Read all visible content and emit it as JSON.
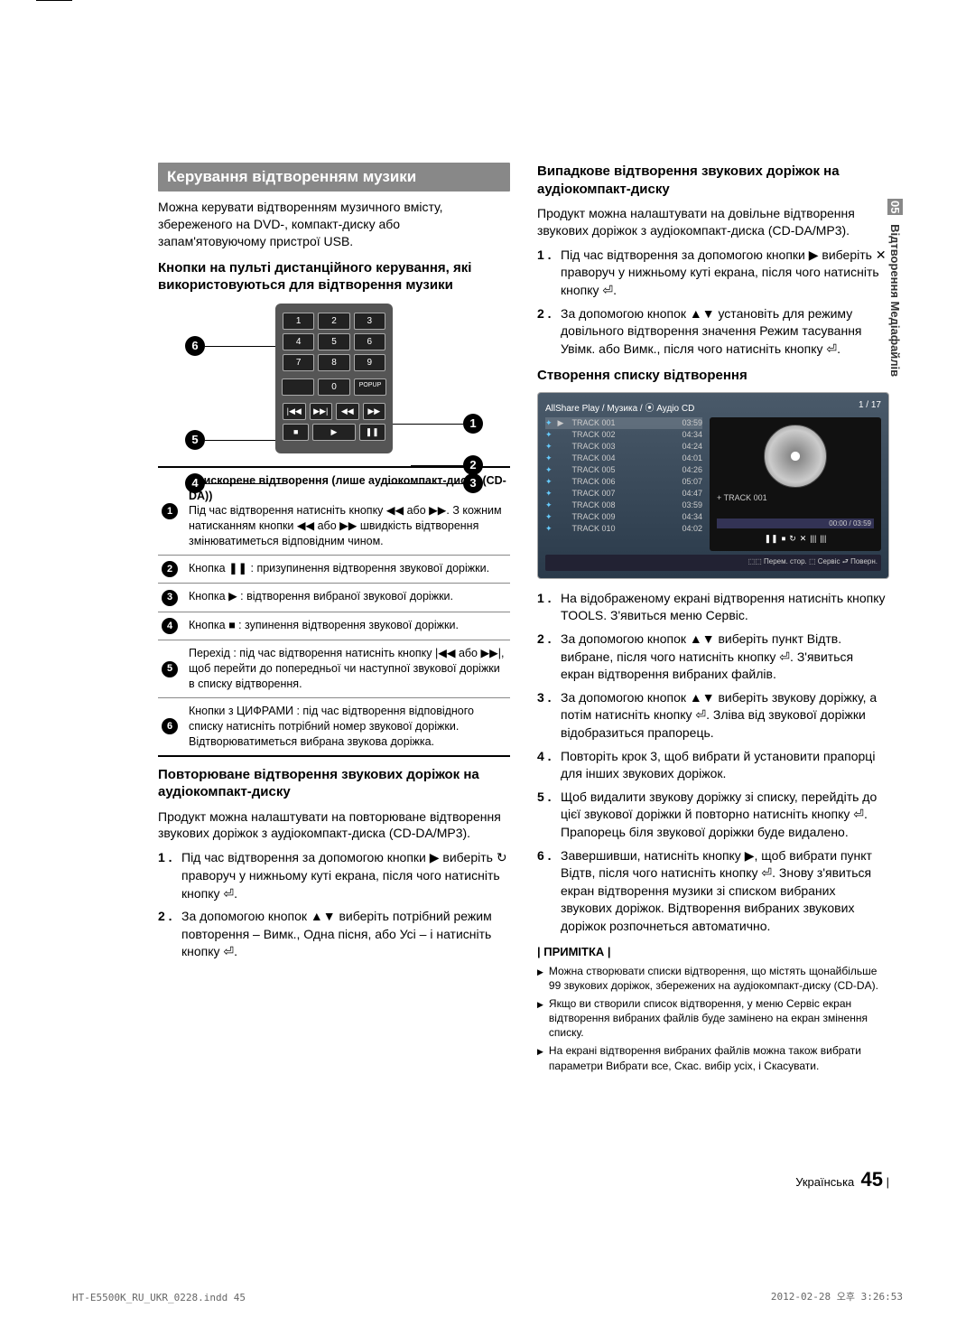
{
  "side": {
    "num": "05",
    "label": "Відтворення Медіафайлів"
  },
  "left": {
    "header": "Керування відтворенням музики",
    "intro": "Можна керувати відтворенням музичного вмісту, збереженого на DVD-, компакт-диску або запам'ятовуючому пристрої USB.",
    "sub1": "Кнопки на пульті дистанційного керування, які використовуються для відтворення музики",
    "remote": {
      "keys": [
        "1",
        "2",
        "3",
        "4",
        "5",
        "6",
        "7",
        "8",
        "9",
        "0"
      ],
      "popup": "POPUP",
      "ctrl_row1": [
        "|◀◀",
        "▶▶|",
        "◀◀",
        "▶▶"
      ],
      "ctrl_row2": [
        "■",
        "▶",
        "❚❚"
      ]
    },
    "table": {
      "r1_title": "Прискорене відтворення (лише аудіокомпакт-диски (CD-DA))",
      "r1_body": "Під час відтворення натисніть кнопку ◀◀ або ▶▶. З кожним натисканням кнопки ◀◀ або ▶▶ швидкість відтворення змінюватиметься відповідним чином.",
      "r2": "Кнопка ❚❚ : призупинення відтворення звукової доріжки.",
      "r3": "Кнопка ▶ : відтворення вибраної звукової доріжки.",
      "r4": "Кнопка ■ : зупинення відтворення звукової доріжки.",
      "r5": "Перехід : під час відтворення натисніть кнопку |◀◀ або ▶▶|, щоб перейти до попередньої чи наступної звукової доріжки в списку відтворення.",
      "r6": "Кнопки з ЦИФРАМИ : під час відтворення відповідного списку натисніть потрібний номер звукової доріжки. Відтворюватиметься вибрана звукова доріжка."
    },
    "sub2": "Повторюване відтворення звукових доріжок на аудіокомпакт-диску",
    "body2": "Продукт можна налаштувати на повторюване відтворення звукових доріжок з аудіокомпакт-диска (CD-DA/MP3).",
    "steps_repeat": [
      "Під час відтворення за допомогою кнопки ▶ виберіть ↻ праворуч у нижньому куті екрана, після чого натисніть кнопку ⏎.",
      "За допомогою кнопок ▲▼ виберіть потрібний режим повторення – Вимк., Одна пісня, або Усі – і натисніть кнопку ⏎."
    ]
  },
  "right": {
    "sub1": "Випадкове відтворення звукових доріжок на аудіокомпакт-диску",
    "body1": "Продукт можна налаштувати на довільне відтворення звукових доріжок з аудіокомпакт-диска (CD-DA/MP3).",
    "steps_random": [
      "Під час відтворення за допомогою кнопки ▶ виберіть ✕ праворуч у нижньому куті екрана, після чого натисніть кнопку ⏎.",
      "За допомогою кнопок ▲▼ установіть для режиму довільного відтворення значення Режим тасування Увімк. або Вимк., після чого натисніть кнопку ⏎."
    ],
    "sub2": "Створення списку відтворення",
    "player": {
      "breadcrumb": "AllShare Play / Музика / ⦿ Аудіо CD",
      "count": "1 / 17",
      "tracks": [
        {
          "n": "TRACK 001",
          "t": "03:59"
        },
        {
          "n": "TRACK 002",
          "t": "04:34"
        },
        {
          "n": "TRACK 003",
          "t": "04:24"
        },
        {
          "n": "TRACK 004",
          "t": "04:01"
        },
        {
          "n": "TRACK 005",
          "t": "04:26"
        },
        {
          "n": "TRACK 006",
          "t": "05:07"
        },
        {
          "n": "TRACK 007",
          "t": "04:47"
        },
        {
          "n": "TRACK 008",
          "t": "03:59"
        },
        {
          "n": "TRACK 009",
          "t": "04:34"
        },
        {
          "n": "TRACK 010",
          "t": "04:02"
        }
      ],
      "now": "+ TRACK 001",
      "time": "00:00 / 03:59",
      "legend": "⬚⬚ Перем. стор. ⬚ Сервіс ⮐ Поверн."
    },
    "steps_playlist": [
      "На відображеному екрані відтворення натисніть кнопку TOOLS. З'явиться меню Сервіс.",
      "За допомогою кнопок ▲▼ виберіть пункт Відтв. вибране, після чого натисніть кнопку ⏎. З'явиться екран відтворення вибраних файлів.",
      "За допомогою кнопок ▲▼ виберіть звукову доріжку, а потім натисніть кнопку ⏎. Зліва від звукової доріжки відобразиться прапорець.",
      "Повторіть крок 3, щоб вибрати й установити прапорці для інших звукових доріжок.",
      "Щоб видалити звукову доріжку зі списку, перейдіть до цієї звукової доріжки й повторно натисніть кнопку ⏎. Прапорець біля звукової доріжки буде видалено.",
      "Завершивши, натисніть кнопку ▶, щоб вибрати пункт Відтв, після чого натисніть кнопку ⏎. Знову з'явиться екран відтворення музики зі списком вибраних звукових доріжок. Відтворення вибраних звукових доріжок розпочнеться автоматично."
    ],
    "note_label": "| ПРИМІТКА |",
    "notes": [
      "Можна створювати списки відтворення, що містять щонайбільше 99 звукових доріжок, збережених на аудіокомпакт-диску (CD-DA).",
      "Якщо ви створили список відтворення, у меню Сервіс екран відтворення вибраних файлів буде замінено на екран змінення списку.",
      "На екрані відтворення вибраних файлів можна також вибрати параметри Вибрати все, Скас. вибір усіх, і Скасувати."
    ]
  },
  "footer": {
    "lang": "Українська",
    "page": "45",
    "file": "HT-E5500K_RU_UKR_0228.indd   45",
    "date": "2012-02-28   오후 3:26:53"
  }
}
